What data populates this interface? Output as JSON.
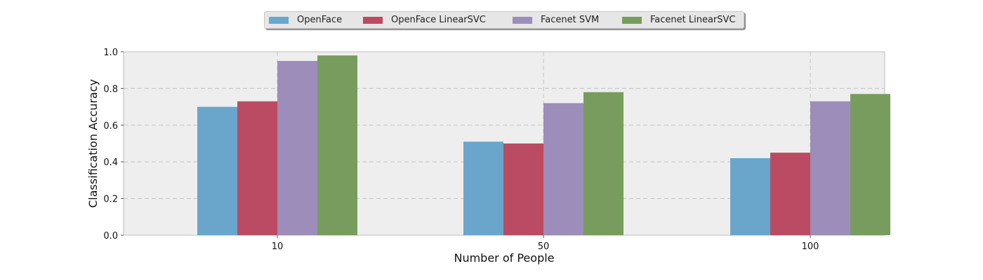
{
  "chart_data": {
    "type": "bar",
    "title": "",
    "xlabel": "Number of People",
    "ylabel": "Classification Accuracy",
    "categories": [
      "10",
      "50",
      "100"
    ],
    "ylim": [
      0.0,
      1.0
    ],
    "yticks": [
      "0.0",
      "0.2",
      "0.4",
      "0.6",
      "0.8",
      "1.0"
    ],
    "grid": true,
    "legend_position": "top-center",
    "series": [
      {
        "name": "OpenFace",
        "color": "#6aa6cb",
        "values": [
          0.7,
          0.51,
          0.42
        ]
      },
      {
        "name": "OpenFace LinearSVC",
        "color": "#bb4b62",
        "values": [
          0.73,
          0.5,
          0.45
        ]
      },
      {
        "name": "Facenet SVM",
        "color": "#9c8dba",
        "values": [
          0.95,
          0.72,
          0.73
        ]
      },
      {
        "name": "Facenet LinearSVC",
        "color": "#789c5e",
        "values": [
          0.98,
          0.78,
          0.77
        ]
      }
    ]
  }
}
